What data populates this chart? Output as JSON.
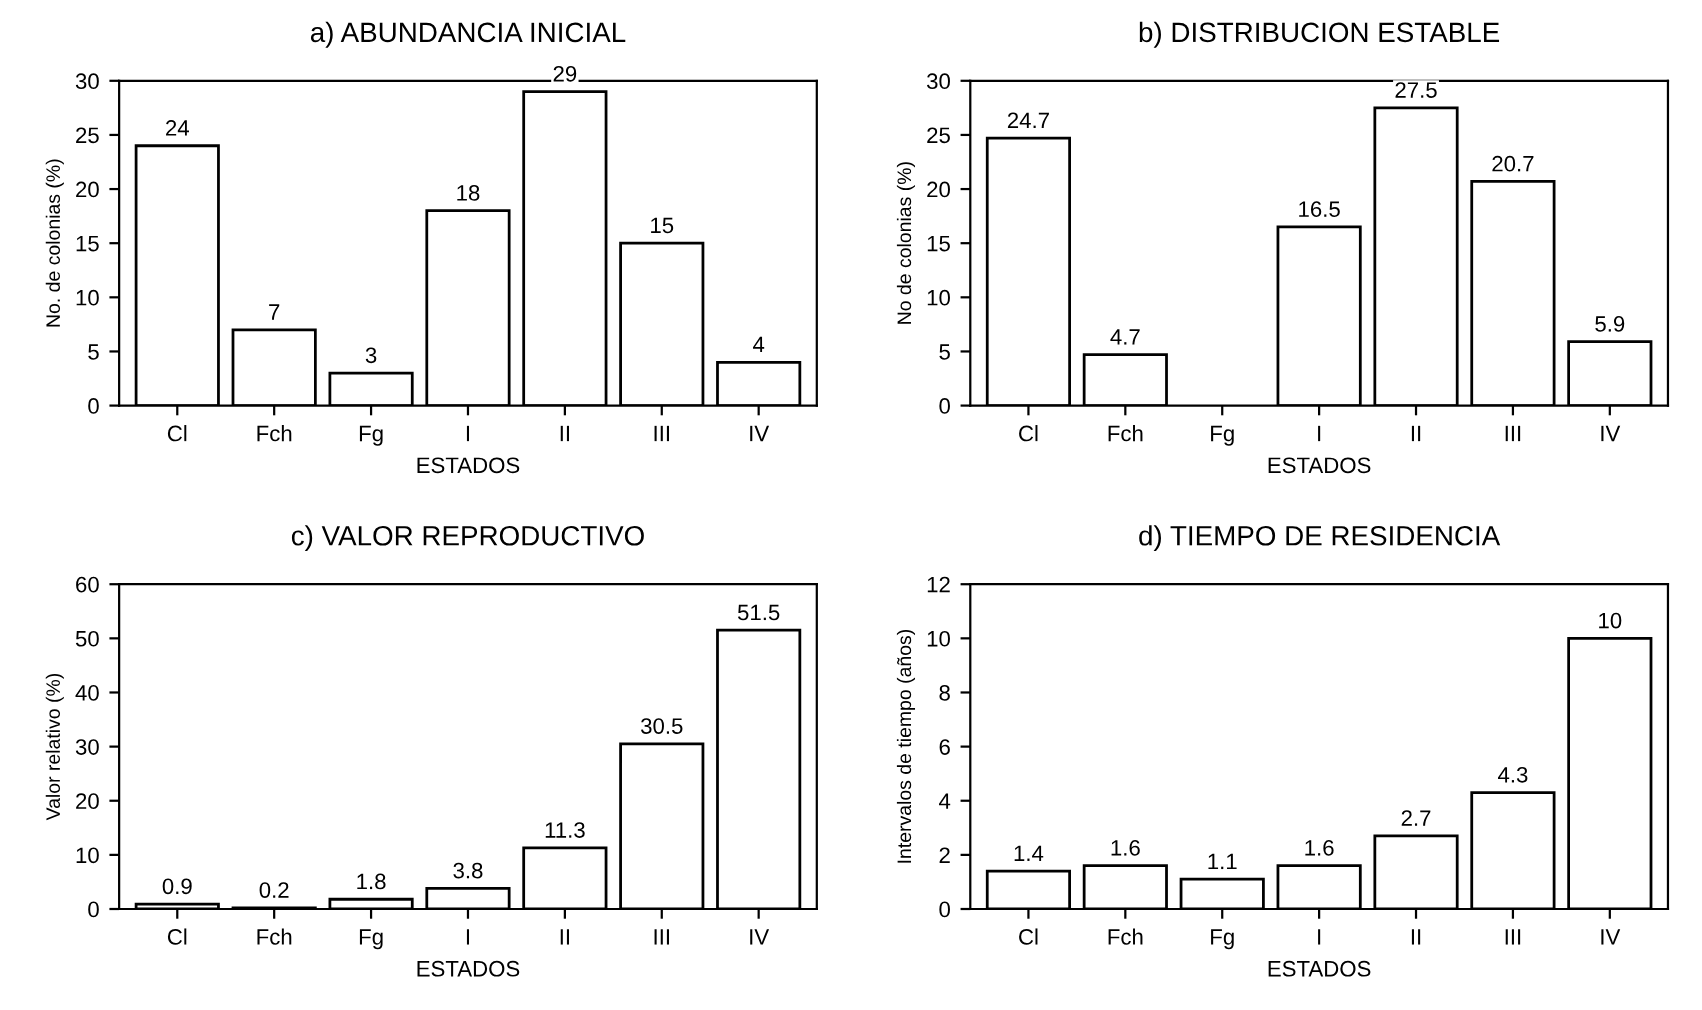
{
  "chart_data": [
    {
      "type": "bar",
      "title": "a) ABUNDANCIA INICIAL",
      "xlabel": "ESTADOS",
      "ylabel": "No. de colonias (%)",
      "categories": [
        "Cl",
        "Fch",
        "Fg",
        "I",
        "II",
        "III",
        "IV"
      ],
      "values": [
        24,
        7,
        3,
        18,
        29,
        15,
        4
      ],
      "color": "#ffffff",
      "ylim": [
        0,
        30
      ],
      "yticks": [
        0,
        5,
        10,
        15,
        20,
        25,
        30
      ],
      "data_labels": true,
      "grid": false,
      "legend": false
    },
    {
      "type": "bar",
      "title": "b) DISTRIBUCION ESTABLE",
      "xlabel": "ESTADOS",
      "ylabel": "No de colonias (%)",
      "categories": [
        "Cl",
        "Fch",
        "Fg",
        "I",
        "II",
        "III",
        "IV"
      ],
      "values": [
        24.7,
        4.7,
        null,
        16.5,
        27.5,
        20.7,
        5.9
      ],
      "value_labels": [
        "24.7",
        "4.7",
        null,
        "16.5",
        "27.5",
        "20.7",
        "5.9"
      ],
      "color": "#ffffff",
      "ylim": [
        0,
        30
      ],
      "yticks": [
        0,
        5,
        10,
        15,
        20,
        25,
        30
      ],
      "grid": false,
      "legend": false
    },
    {
      "type": "bar",
      "title": "c) VALOR REPRODUCTIVO",
      "xlabel": "ESTADOS",
      "ylabel": "Valor relativo (%)",
      "categories": [
        "Cl",
        "Fch",
        "Fg",
        "I",
        "II",
        "III",
        "IV"
      ],
      "values": [
        0.9,
        0.2,
        1.8,
        3.8,
        11.3,
        30.5,
        51.5
      ],
      "color": "#ffffff",
      "ylim": [
        0,
        60
      ],
      "yticks": [
        0,
        10,
        20,
        30,
        40,
        50,
        60
      ],
      "data_labels": true,
      "grid": false,
      "legend": false
    },
    {
      "type": "bar",
      "title": "d) TIEMPO DE RESIDENCIA",
      "xlabel": "ESTADOS",
      "ylabel": "Intervalos de tiempo (años)",
      "categories": [
        "Cl",
        "Fch",
        "Fg",
        "I",
        "II",
        "III",
        "IV"
      ],
      "values": [
        1.4,
        1.6,
        1.1,
        1.6,
        2.7,
        4.3,
        10
      ],
      "color": "#ffffff",
      "ylim": [
        0,
        12
      ],
      "yticks": [
        0,
        2,
        4,
        6,
        8,
        10,
        12
      ],
      "data_labels": true,
      "grid": false,
      "legend": false
    }
  ]
}
